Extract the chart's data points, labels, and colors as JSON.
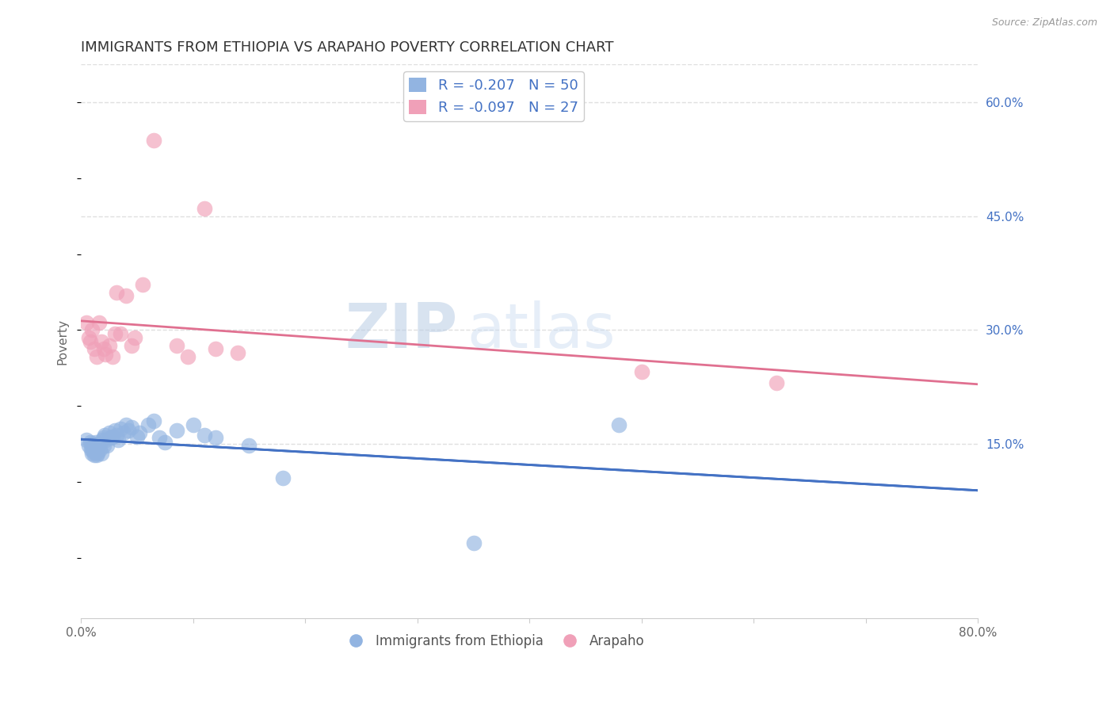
{
  "title": "IMMIGRANTS FROM ETHIOPIA VS ARAPAHO POVERTY CORRELATION CHART",
  "source": "Source: ZipAtlas.com",
  "ylabel": "Poverty",
  "xlim": [
    0.0,
    0.8
  ],
  "ylim": [
    0.0,
    0.65
  ],
  "xtick_positions": [
    0.0,
    0.1,
    0.2,
    0.3,
    0.4,
    0.5,
    0.6,
    0.7,
    0.8
  ],
  "xticklabels": [
    "0.0%",
    "",
    "",
    "",
    "",
    "",
    "",
    "",
    "80.0%"
  ],
  "yticks_right": [
    0.15,
    0.3,
    0.45,
    0.6
  ],
  "ytick_right_labels": [
    "15.0%",
    "30.0%",
    "45.0%",
    "60.0%"
  ],
  "blue_color": "#92b4e1",
  "pink_color": "#f0a0b8",
  "blue_line_color": "#4472c4",
  "pink_line_color": "#e07090",
  "grid_color": "#e0e0e0",
  "background_color": "#ffffff",
  "legend_r1": "R = -0.207",
  "legend_n1": "N = 50",
  "legend_r2": "R = -0.097",
  "legend_n2": "N = 27",
  "watermark_zip": "ZIP",
  "watermark_atlas": "atlas",
  "blue_x": [
    0.005,
    0.007,
    0.008,
    0.009,
    0.01,
    0.01,
    0.01,
    0.011,
    0.012,
    0.012,
    0.013,
    0.013,
    0.014,
    0.014,
    0.015,
    0.015,
    0.016,
    0.017,
    0.018,
    0.019,
    0.02,
    0.02,
    0.021,
    0.022,
    0.023,
    0.025,
    0.027,
    0.028,
    0.03,
    0.032,
    0.033,
    0.035,
    0.038,
    0.04,
    0.042,
    0.045,
    0.05,
    0.052,
    0.06,
    0.065,
    0.07,
    0.075,
    0.085,
    0.1,
    0.11,
    0.12,
    0.15,
    0.18,
    0.35,
    0.48
  ],
  "blue_y": [
    0.155,
    0.148,
    0.152,
    0.143,
    0.138,
    0.145,
    0.15,
    0.14,
    0.135,
    0.142,
    0.148,
    0.152,
    0.135,
    0.14,
    0.145,
    0.138,
    0.15,
    0.143,
    0.138,
    0.155,
    0.148,
    0.158,
    0.162,
    0.155,
    0.148,
    0.165,
    0.158,
    0.16,
    0.168,
    0.162,
    0.155,
    0.17,
    0.165,
    0.175,
    0.168,
    0.172,
    0.16,
    0.165,
    0.175,
    0.18,
    0.158,
    0.152,
    0.168,
    0.175,
    0.162,
    0.158,
    0.148,
    0.105,
    0.02,
    0.175
  ],
  "pink_x": [
    0.005,
    0.007,
    0.008,
    0.01,
    0.012,
    0.014,
    0.016,
    0.018,
    0.02,
    0.022,
    0.025,
    0.028,
    0.03,
    0.032,
    0.035,
    0.04,
    0.045,
    0.048,
    0.055,
    0.065,
    0.085,
    0.095,
    0.11,
    0.12,
    0.14,
    0.5,
    0.62
  ],
  "pink_y": [
    0.31,
    0.29,
    0.285,
    0.3,
    0.275,
    0.265,
    0.31,
    0.285,
    0.275,
    0.268,
    0.28,
    0.265,
    0.295,
    0.35,
    0.295,
    0.345,
    0.28,
    0.29,
    0.36,
    0.55,
    0.28,
    0.265,
    0.46,
    0.275,
    0.27,
    0.245,
    0.23
  ],
  "blue_line_x0": 0.0,
  "blue_line_y0": 0.155,
  "blue_line_x1": 0.3,
  "blue_line_y1": 0.105,
  "pink_line_x0": 0.0,
  "pink_line_y0": 0.278,
  "pink_line_x1": 0.8,
  "pink_line_y1": 0.255
}
